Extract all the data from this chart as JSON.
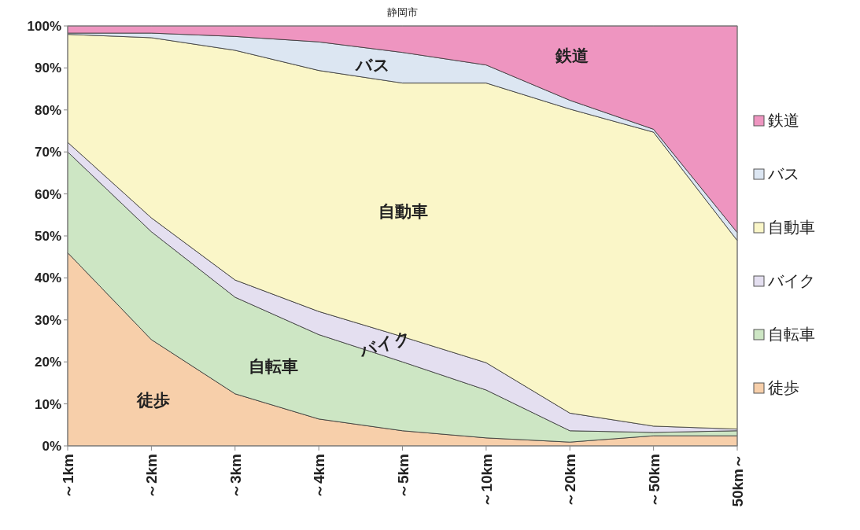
{
  "chart_data": {
    "type": "area",
    "stacked": true,
    "title": "静岡市",
    "categories": [
      "～1km",
      "～2km",
      "～3km",
      "～4km",
      "～5km",
      "～10km",
      "～20km",
      "～50km",
      "50km～"
    ],
    "series": [
      {
        "name": "徒歩",
        "color": "#f7cfaa",
        "values": [
          46,
          25.3,
          12.4,
          6.4,
          3.6,
          1.9,
          0.9,
          2.4,
          2.4
        ]
      },
      {
        "name": "自転車",
        "color": "#cde6c4",
        "values": [
          24,
          25.7,
          23,
          20.1,
          16.4,
          11.4,
          2.7,
          0.8,
          1.2
        ]
      },
      {
        "name": "バイク",
        "color": "#e4dff0",
        "values": [
          2.3,
          3.3,
          4.1,
          5.5,
          6,
          6.5,
          4.2,
          1.5,
          0.4
        ]
      },
      {
        "name": "自動車",
        "color": "#faf6c8",
        "values": [
          25.7,
          42.9,
          54.7,
          57.4,
          60.4,
          66.6,
          72.4,
          70,
          44.9
        ]
      },
      {
        "name": "バス",
        "color": "#dce6f2",
        "values": [
          0.3,
          1.1,
          3.3,
          6.8,
          7.3,
          4.3,
          2.1,
          0.7,
          1.9
        ]
      },
      {
        "name": "鉄道",
        "color": "#ee95c0",
        "values": [
          1.7,
          1.7,
          2.5,
          3.8,
          6.3,
          9.3,
          17.7,
          24.6,
          49.2
        ]
      }
    ],
    "ylim": [
      0,
      100
    ],
    "yticks": [
      {
        "value": 0,
        "label": "0%"
      },
      {
        "value": 10,
        "label": "10%"
      },
      {
        "value": 20,
        "label": "20%"
      },
      {
        "value": 30,
        "label": "30%"
      },
      {
        "value": 40,
        "label": "40%"
      },
      {
        "value": 50,
        "label": "50%"
      },
      {
        "value": 60,
        "label": "60%"
      },
      {
        "value": 70,
        "label": "70%"
      },
      {
        "value": 80,
        "label": "80%"
      },
      {
        "value": 90,
        "label": "90%"
      },
      {
        "value": 100,
        "label": "100%"
      }
    ],
    "legend": "right",
    "annotations": [
      "徒歩",
      "自転車",
      "バイク",
      "自動車",
      "バス",
      "鉄道"
    ]
  }
}
